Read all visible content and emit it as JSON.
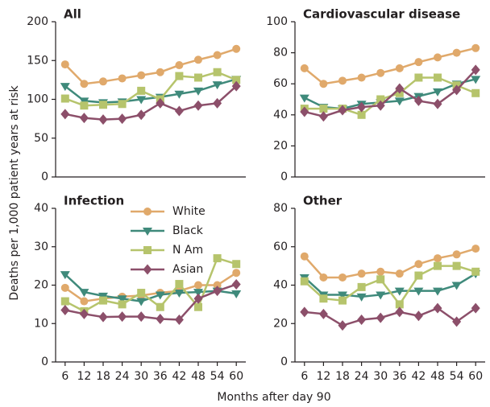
{
  "xlabel": "Months after day 90",
  "ylabel": "Deaths per 1,000 patient years at risk",
  "chart_data": [
    {
      "type": "line",
      "title": "All",
      "x": [
        6,
        12,
        18,
        24,
        30,
        36,
        42,
        48,
        54,
        60
      ],
      "xlim": [
        3,
        63
      ],
      "ylim": [
        0,
        200
      ],
      "yticks": [
        0,
        50,
        100,
        150,
        200
      ],
      "series": [
        {
          "name": "White",
          "color": "#e0a96b",
          "marker": "circle",
          "values": [
            145,
            120,
            123,
            127,
            131,
            135,
            144,
            151,
            157,
            165
          ]
        },
        {
          "name": "Black",
          "color": "#3f8a7b",
          "marker": "triangle-down",
          "values": [
            117,
            98,
            96,
            97,
            100,
            103,
            107,
            111,
            119,
            126
          ]
        },
        {
          "name": "N Am",
          "color": "#b6c46c",
          "marker": "square",
          "values": [
            101,
            92,
            93,
            94,
            111,
            100,
            130,
            128,
            135,
            125
          ]
        },
        {
          "name": "Asian",
          "color": "#8c4f6a",
          "marker": "diamond",
          "values": [
            81,
            76,
            74,
            75,
            80,
            95,
            85,
            92,
            95,
            117
          ]
        }
      ]
    },
    {
      "type": "line",
      "title": "Cardiovascular disease",
      "x": [
        6,
        12,
        18,
        24,
        30,
        36,
        42,
        48,
        54,
        60
      ],
      "xlim": [
        3,
        63
      ],
      "ylim": [
        0,
        100
      ],
      "yticks": [
        0,
        20,
        40,
        60,
        80,
        100
      ],
      "series": [
        {
          "name": "White",
          "color": "#e0a96b",
          "marker": "circle",
          "values": [
            70,
            60,
            62,
            64,
            67,
            70,
            74,
            77,
            80,
            83
          ]
        },
        {
          "name": "Black",
          "color": "#3f8a7b",
          "marker": "triangle-down",
          "values": [
            51,
            45,
            44,
            47,
            48,
            49,
            52,
            55,
            60,
            63
          ]
        },
        {
          "name": "N Am",
          "color": "#b6c46c",
          "marker": "square",
          "values": [
            44,
            44,
            44,
            40,
            50,
            54,
            64,
            64,
            59,
            54
          ]
        },
        {
          "name": "Asian",
          "color": "#8c4f6a",
          "marker": "diamond",
          "values": [
            42,
            39,
            43,
            45,
            46,
            57,
            49,
            47,
            56,
            69
          ]
        }
      ]
    },
    {
      "type": "line",
      "title": "Infection",
      "x": [
        6,
        12,
        18,
        24,
        30,
        36,
        42,
        48,
        54,
        60
      ],
      "xlim": [
        3,
        63
      ],
      "xticks": [
        6,
        12,
        18,
        24,
        30,
        36,
        42,
        48,
        54,
        60
      ],
      "ylim": [
        0,
        40
      ],
      "yticks": [
        0,
        10,
        20,
        30,
        40
      ],
      "legend": "upper center",
      "series": [
        {
          "name": "White",
          "color": "#e0a96b",
          "marker": "circle",
          "values": [
            19.3,
            15.8,
            16.5,
            17,
            17.3,
            18,
            18.5,
            20,
            20,
            23.2
          ]
        },
        {
          "name": "Black",
          "color": "#3f8a7b",
          "marker": "triangle-down",
          "values": [
            22.8,
            18.2,
            17.2,
            16.5,
            15.8,
            17.5,
            18,
            18.2,
            18.5,
            17.8
          ]
        },
        {
          "name": "N Am",
          "color": "#b6c46c",
          "marker": "square",
          "values": [
            15.8,
            13.2,
            16,
            15,
            18,
            14.3,
            20.3,
            14.3,
            27,
            25.5
          ]
        },
        {
          "name": "Asian",
          "color": "#8c4f6a",
          "marker": "diamond",
          "values": [
            13.5,
            12.5,
            11.7,
            11.8,
            11.8,
            11.2,
            11,
            16.5,
            18.5,
            20.2
          ]
        }
      ]
    },
    {
      "type": "line",
      "title": "Other",
      "x": [
        6,
        12,
        18,
        24,
        30,
        36,
        42,
        48,
        54,
        60
      ],
      "xlim": [
        3,
        63
      ],
      "xticks": [
        6,
        12,
        18,
        24,
        30,
        36,
        42,
        48,
        54,
        60
      ],
      "ylim": [
        0,
        80
      ],
      "yticks": [
        0,
        20,
        40,
        60,
        80
      ],
      "series": [
        {
          "name": "White",
          "color": "#e0a96b",
          "marker": "circle",
          "values": [
            55,
            44,
            44,
            46,
            47,
            46,
            51,
            54,
            56,
            59
          ]
        },
        {
          "name": "Black",
          "color": "#3f8a7b",
          "marker": "triangle-down",
          "values": [
            44,
            35,
            35,
            34,
            35,
            37,
            37,
            37,
            40,
            46
          ]
        },
        {
          "name": "N Am",
          "color": "#b6c46c",
          "marker": "square",
          "values": [
            42,
            33,
            32,
            39,
            43,
            30,
            45,
            50,
            50,
            47
          ]
        },
        {
          "name": "Asian",
          "color": "#8c4f6a",
          "marker": "diamond",
          "values": [
            26,
            25,
            19,
            22,
            23,
            26,
            24,
            28,
            21,
            28
          ]
        }
      ]
    }
  ]
}
